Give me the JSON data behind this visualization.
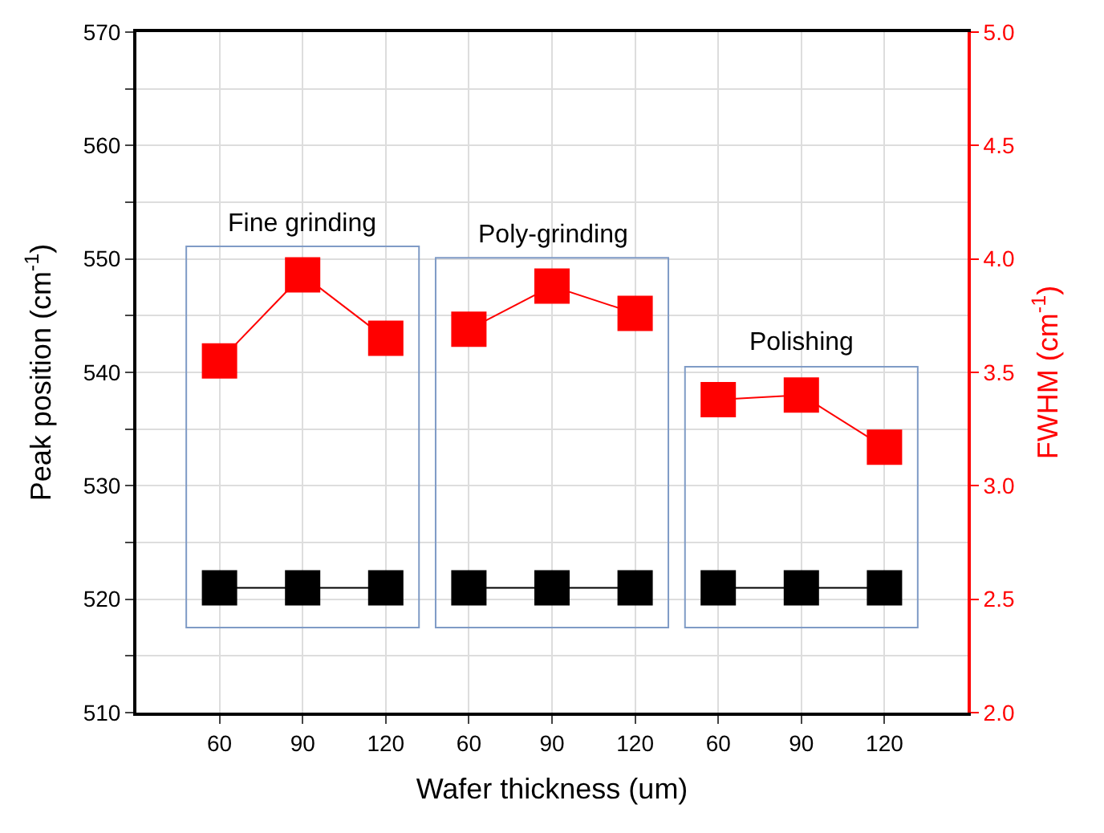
{
  "chart_data": {
    "type": "line",
    "xlabel": "Wafer thickness (um)",
    "ylabel": "Peak position (cm$^{-1}$)",
    "y2label": "FWHM (cm$^{-1}$)",
    "categories": [
      "60",
      "90",
      "120",
      "60",
      "90",
      "120",
      "60",
      "90",
      "120"
    ],
    "series": [
      {
        "color": "#000000",
        "values": [
          521,
          521,
          521,
          null,
          null,
          null,
          null,
          null,
          null
        ]
      },
      {
        "color": "#000000",
        "values": [
          null,
          null,
          null,
          521,
          521,
          521,
          null,
          null,
          null
        ]
      },
      {
        "color": "#000000",
        "values": [
          null,
          null,
          null,
          null,
          null,
          null,
          521,
          521,
          521
        ]
      },
      {
        "color": "#ff0000",
        "axis": "y2",
        "values": [
          3.55,
          3.93,
          3.65,
          null,
          null,
          null,
          null,
          null,
          null
        ]
      },
      {
        "color": "#ff0000",
        "axis": "y2",
        "values": [
          null,
          null,
          null,
          3.69,
          3.88,
          3.76,
          null,
          null,
          null
        ]
      },
      {
        "color": "#ff0000",
        "axis": "y2",
        "values": [
          null,
          null,
          null,
          null,
          null,
          null,
          3.38,
          3.4,
          3.17
        ]
      }
    ],
    "ylim": [
      510,
      570
    ],
    "yticks": [
      510,
      {
        "value": 515,
        "label": null
      },
      520,
      {
        "value": 525,
        "label": null
      },
      530,
      {
        "value": 535,
        "label": null
      },
      540,
      {
        "value": 545,
        "label": null
      },
      550,
      {
        "value": 555,
        "label": null
      },
      560,
      {
        "value": 565,
        "label": null
      },
      570
    ],
    "y2lim": [
      2.0,
      5.0
    ],
    "y2ticks": [
      {
        "value": 2.0,
        "label": "2.0"
      },
      2.5,
      {
        "value": 3.0,
        "label": "3.0"
      },
      3.5,
      {
        "value": 4.0,
        "label": "4.0"
      },
      4.5,
      {
        "value": 5.0,
        "label": "5.0"
      }
    ],
    "annotations": [
      "Fine grinding",
      "Poly-grinding",
      "Polishing"
    ],
    "marker": "square",
    "line_style": "solid",
    "grid": true
  }
}
